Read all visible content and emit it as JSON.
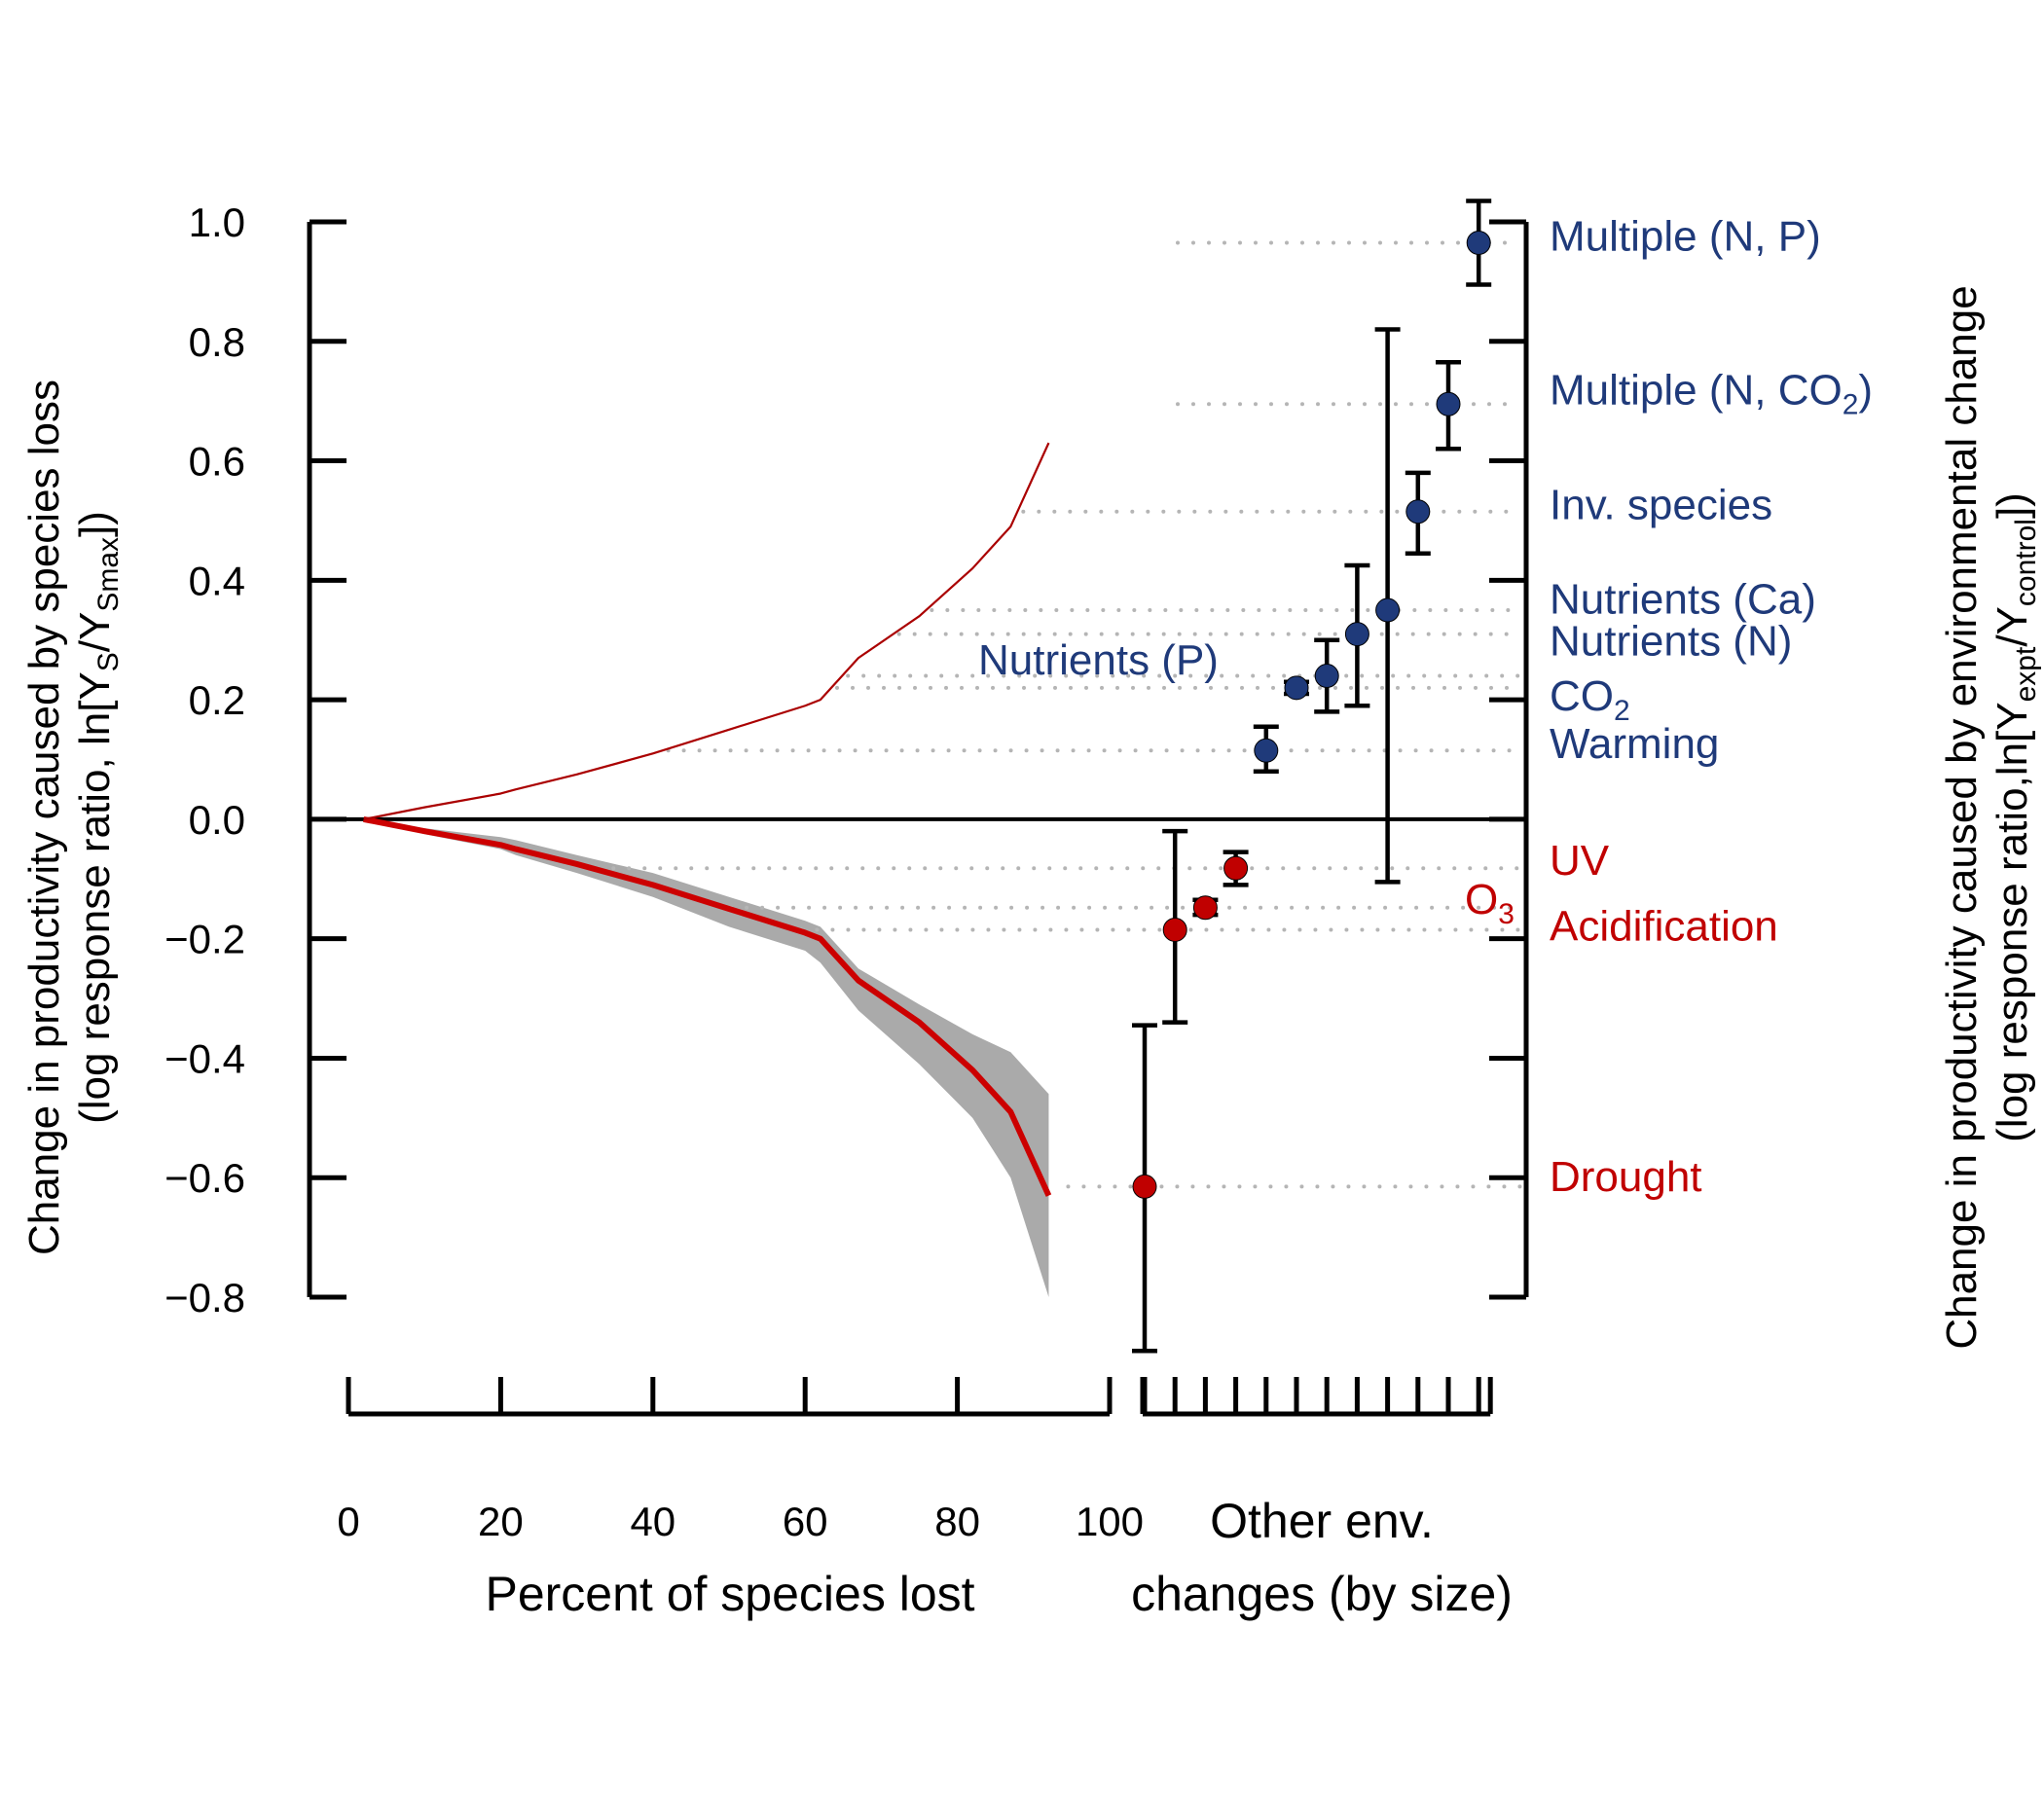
{
  "chart_data": {
    "type": "line",
    "left_axis_title_line1": "Change in productivity caused by species loss",
    "left_axis_title_line2_prefix": "(log response ratio, ln[Y",
    "left_axis_title_sub1": "S",
    "left_axis_title_mid": "/Y",
    "left_axis_title_sub2": "Smax",
    "left_axis_title_suffix": "])",
    "right_axis_title_line1": "Change in productivity caused by environmental change",
    "right_axis_title_line2_prefix": "(log response ratio,ln[Y",
    "right_axis_title_sub1": "expt",
    "right_axis_title_mid": "/Y",
    "right_axis_title_sub2": "control",
    "right_axis_title_suffix": "])",
    "xlabel": "Percent of species lost",
    "other_label_line1": "Other env.",
    "other_label_line2": "changes (by size)",
    "ylim": [
      -0.8,
      1.0
    ],
    "y_ticks": [
      1.0,
      0.8,
      0.6,
      0.4,
      0.2,
      0.0,
      -0.2,
      -0.4,
      -0.6,
      -0.8
    ],
    "y_tick_labels": [
      "1.0",
      "0.8",
      "0.6",
      "0.4",
      "0.2",
      "0.0",
      "−0.2",
      "−0.4",
      "−0.6",
      "−0.8"
    ],
    "xlim": [
      0,
      100
    ],
    "x_ticks": [
      0,
      20,
      40,
      60,
      80,
      100
    ],
    "x_tick_labels": [
      "0",
      "20",
      "40",
      "60",
      "80",
      "100"
    ],
    "series": [
      {
        "role": "loss",
        "color": "#cc0000",
        "x": [
          2,
          10,
          20,
          22,
          30,
          40,
          50,
          60,
          62,
          67,
          75,
          82,
          87,
          92
        ],
        "y": [
          0,
          -0.02,
          -0.043,
          -0.05,
          -0.075,
          -0.11,
          -0.15,
          -0.19,
          -0.2,
          -0.27,
          -0.34,
          -0.42,
          -0.49,
          -0.63
        ]
      },
      {
        "role": "mirror",
        "color": "#aa0000",
        "x": [
          2,
          10,
          20,
          22,
          30,
          40,
          50,
          60,
          62,
          67,
          75,
          82,
          87,
          92
        ],
        "y": [
          0,
          0.02,
          0.043,
          0.05,
          0.075,
          0.11,
          0.15,
          0.19,
          0.2,
          0.27,
          0.34,
          0.42,
          0.49,
          0.63
        ]
      }
    ],
    "band": {
      "color": "#aaaaaa",
      "x": [
        2,
        10,
        20,
        22,
        30,
        40,
        50,
        60,
        62,
        67,
        75,
        82,
        87,
        92
      ],
      "upper": [
        0,
        -0.015,
        -0.03,
        -0.035,
        -0.06,
        -0.09,
        -0.13,
        -0.17,
        -0.18,
        -0.25,
        -0.31,
        -0.36,
        -0.39,
        -0.46
      ],
      "lower": [
        0,
        -0.025,
        -0.05,
        -0.06,
        -0.09,
        -0.13,
        -0.18,
        -0.22,
        -0.24,
        -0.32,
        -0.41,
        -0.5,
        -0.6,
        -0.8
      ]
    },
    "env_changes": [
      {
        "rank": 1,
        "label": "Drought",
        "value": -0.615,
        "ci_low": -0.89,
        "ci_high": -0.345,
        "color": "#c00000"
      },
      {
        "rank": 2,
        "label": "Acidification",
        "value": -0.185,
        "ci_low": -0.34,
        "ci_high": -0.02,
        "color": "#c00000"
      },
      {
        "rank": 3,
        "label": "O",
        "label_sub": "3",
        "value": -0.148,
        "ci_low": -0.16,
        "ci_high": -0.135,
        "color": "#c00000"
      },
      {
        "rank": 4,
        "label": "UV",
        "value": -0.082,
        "ci_low": -0.11,
        "ci_high": -0.055,
        "color": "#c00000"
      },
      {
        "rank": 5,
        "label": "Warming",
        "value": 0.115,
        "ci_low": 0.08,
        "ci_high": 0.155,
        "color": "#1f3a7a"
      },
      {
        "rank": 6,
        "label": "CO",
        "label_sub": "2",
        "value": 0.22,
        "ci_low": 0.21,
        "ci_high": 0.23,
        "color": "#1f3a7a"
      },
      {
        "rank": 7,
        "label": "Nutrients (P)",
        "value": 0.24,
        "ci_low": 0.18,
        "ci_high": 0.3,
        "color": "#1f3a7a"
      },
      {
        "rank": 8,
        "label": "Nutrients (N)",
        "value": 0.31,
        "ci_low": 0.19,
        "ci_high": 0.425,
        "color": "#1f3a7a"
      },
      {
        "rank": 9,
        "label": "Nutrients (Ca)",
        "value": 0.35,
        "ci_low": -0.105,
        "ci_high": 0.82,
        "color": "#1f3a7a"
      },
      {
        "rank": 10,
        "label": "Inv. species",
        "value": 0.515,
        "ci_low": 0.445,
        "ci_high": 0.58,
        "color": "#1f3a7a"
      },
      {
        "rank": 11,
        "label": "Multiple (N, CO",
        "label_sub": "2",
        "label_suffix": ")",
        "value": 0.695,
        "ci_low": 0.62,
        "ci_high": 0.765,
        "color": "#1f3a7a"
      },
      {
        "rank": 12,
        "label": "Multiple (N, P)",
        "value": 0.965,
        "ci_low": 0.895,
        "ci_high": 1.035,
        "color": "#1f3a7a"
      }
    ],
    "grid": false,
    "legend": "none"
  }
}
